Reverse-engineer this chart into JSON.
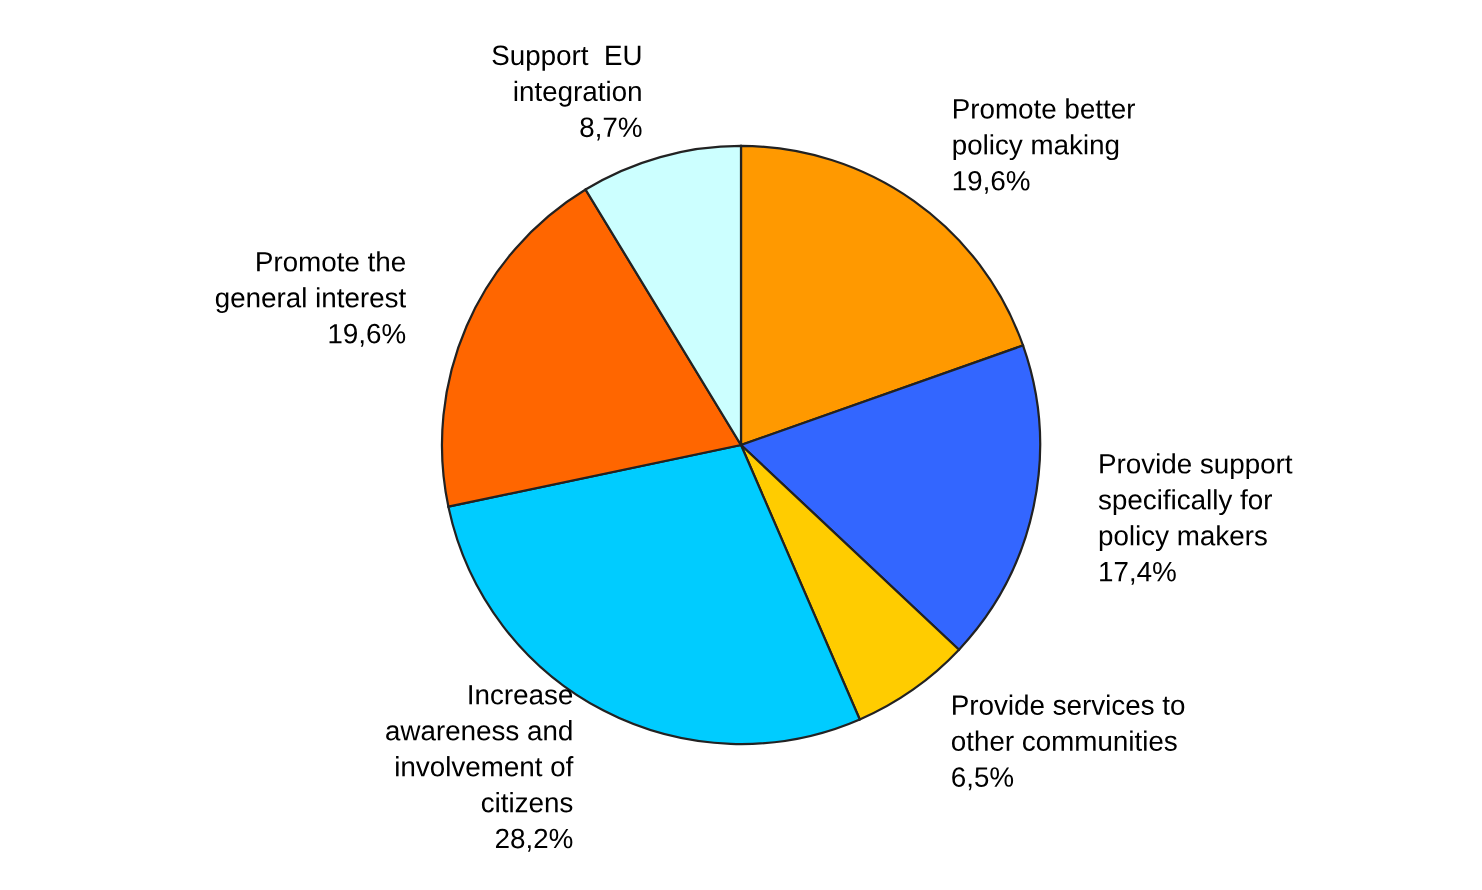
{
  "chart_data": {
    "type": "pie",
    "categories": [
      "Promote better\npolicy making",
      "Provide support\nspecifically for\npolicy makers",
      "Provide services to\nother communities",
      "Increase\nawareness and\ninvolvement of\ncitizens",
      "Promote the\ngeneral interest",
      "Support  EU\nintegration"
    ],
    "values": [
      19.6,
      17.4,
      6.5,
      28.2,
      19.6,
      8.7
    ],
    "value_labels": [
      "19,6%",
      "17,4%",
      "6,5%",
      "28,2%",
      "19,6%",
      "8,7%"
    ],
    "colors": [
      "#ff9900",
      "#3366ff",
      "#ffcc00",
      "#00ccff",
      "#ff6600",
      "#ccffff"
    ],
    "legend": false
  }
}
